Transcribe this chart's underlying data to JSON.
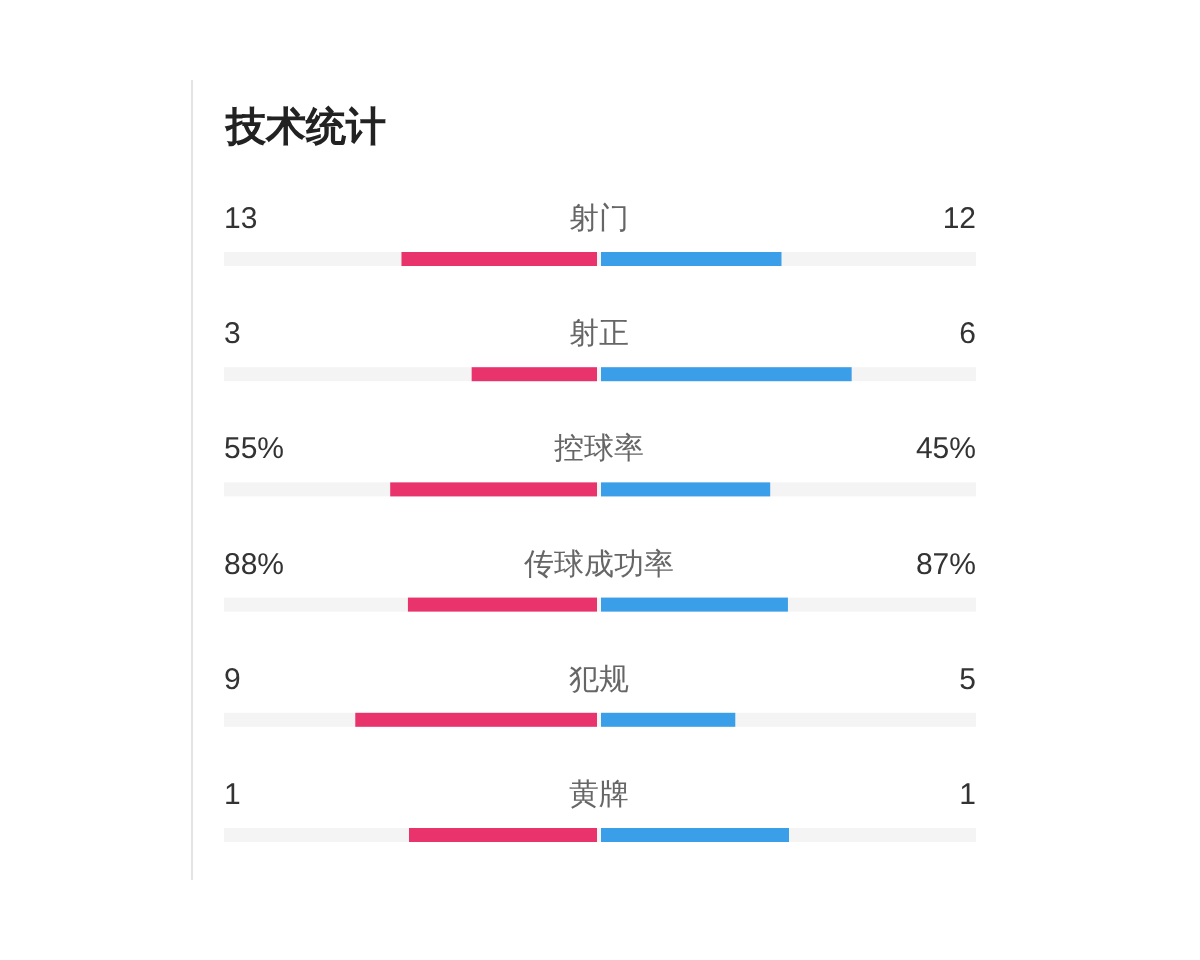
{
  "chart_data": {
    "type": "other",
    "data_labels": true,
    "title": "技术统计",
    "categories": [
      "射门",
      "射正",
      "控球率",
      "传球成功率",
      "犯规",
      "黄牌"
    ],
    "series": [
      {
        "color": "#e8336d",
        "values": [
          13,
          3,
          55,
          88,
          9,
          1
        ],
        "value_labels": [
          "13",
          "3",
          "55%",
          "88%",
          "9",
          "1"
        ]
      },
      {
        "color": "#3b9ee8",
        "values": [
          12,
          6,
          45,
          87,
          5,
          1
        ],
        "value_labels": [
          "12",
          "6",
          "45%",
          "87%",
          "5",
          "1"
        ]
      }
    ]
  }
}
